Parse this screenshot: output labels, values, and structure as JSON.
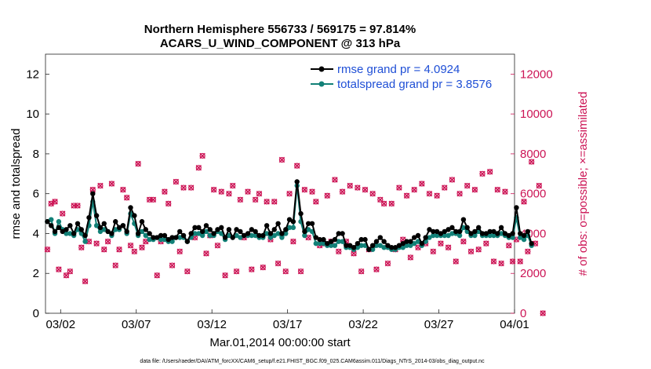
{
  "chart_data": {
    "type": "line",
    "title_line1": "Northern Hemisphere 556733 / 569175 = 97.814%",
    "title_line2": "ACARS_U_WIND_COMPONENT @ 313 hPa",
    "xlabel": "Mar.01,2014 00:00:00 start",
    "ylabel": "rmse and totalspread",
    "ylabel_right": "# of obs: o=possible; ×=assimilated",
    "footer": "data file: /Users/raeder/DAI/ATM_forcXX/CAM6_setup/f.e21.FHIST_BGC.f09_025.CAM6assim.011/Diags_NTrS_2014-03/obs_diag_output.nc",
    "xlim": [
      0,
      31
    ],
    "ylim": [
      0,
      13
    ],
    "ylim_right": [
      0,
      13000
    ],
    "x_ticks": [
      1,
      6,
      11,
      16,
      21,
      26,
      31
    ],
    "x_tick_labels": [
      "03/02",
      "03/07",
      "03/12",
      "03/17",
      "03/22",
      "03/27",
      "04/01"
    ],
    "y_ticks": [
      0,
      2,
      4,
      6,
      8,
      10,
      12
    ],
    "y_tick_labels": [
      "0",
      "2",
      "4",
      "6",
      "8",
      "10",
      "12"
    ],
    "y_right_ticks": [
      0,
      2000,
      4000,
      6000,
      8000,
      10000,
      12000
    ],
    "y_right_tick_labels": [
      "0",
      "2000",
      "4000",
      "6000",
      "8000",
      "10000",
      "12000"
    ],
    "x_step_days": 0.25,
    "series": [
      {
        "name": "rmse",
        "legend": "rmse grand pr = 4.0924",
        "color": "#000000",
        "values": [
          4.6,
          4.4,
          4.1,
          4.3,
          4.1,
          4.2,
          4.4,
          4.0,
          4.5,
          4.2,
          3.9,
          4.8,
          6.0,
          4.9,
          4.3,
          4.5,
          4.1,
          4.0,
          4.6,
          4.3,
          4.4,
          4.1,
          5.3,
          4.9,
          4.0,
          4.6,
          4.2,
          4.0,
          3.8,
          3.8,
          3.9,
          3.9,
          3.7,
          3.8,
          3.8,
          4.1,
          3.9,
          3.6,
          4.0,
          4.3,
          4.3,
          4.1,
          4.4,
          4.2,
          4.0,
          4.2,
          4.3,
          3.8,
          4.2,
          3.8,
          4.2,
          4.1,
          3.9,
          4.0,
          4.2,
          4.1,
          3.9,
          3.9,
          4.4,
          4.0,
          4.2,
          4.5,
          4.0,
          4.2,
          4.7,
          4.6,
          6.6,
          5.0,
          4.1,
          4.5,
          4.5,
          3.8,
          3.7,
          3.7,
          3.5,
          3.6,
          3.7,
          4.0,
          4.0,
          3.4,
          3.4,
          3.3,
          3.5,
          3.7,
          3.7,
          3.2,
          3.4,
          3.6,
          3.8,
          3.6,
          3.4,
          3.3,
          3.3,
          3.4,
          3.5,
          3.6,
          3.6,
          3.8,
          3.9,
          3.5,
          3.8,
          4.2,
          4.1,
          4.1,
          4.0,
          4.1,
          4.2,
          4.3,
          4.1,
          4.1,
          4.7,
          4.3,
          4.0,
          4.1,
          4.3,
          4.0,
          4.0,
          4.1,
          4.1,
          4.0,
          4.3,
          4.0,
          3.9,
          4.0,
          5.3,
          4.0,
          3.9,
          4.1,
          3.5
        ]
      },
      {
        "name": "totalspread",
        "legend": "totalspread grand pr = 3.8576",
        "color": "#128077",
        "values": [
          4.6,
          4.7,
          4.0,
          4.6,
          4.2,
          4.0,
          4.0,
          3.9,
          4.2,
          4.0,
          3.6,
          4.4,
          5.6,
          4.4,
          4.1,
          4.2,
          4.1,
          3.9,
          4.2,
          4.2,
          4.4,
          4.0,
          5.0,
          4.5,
          3.9,
          4.1,
          3.9,
          3.7,
          3.7,
          3.8,
          3.7,
          3.7,
          3.6,
          3.6,
          3.8,
          3.8,
          3.8,
          3.6,
          3.8,
          4.0,
          4.0,
          3.9,
          4.1,
          3.9,
          3.9,
          4.1,
          4.0,
          3.7,
          3.9,
          3.8,
          3.9,
          3.8,
          3.9,
          3.9,
          3.9,
          3.9,
          3.8,
          3.8,
          4.0,
          3.8,
          3.9,
          4.0,
          3.8,
          4.0,
          4.3,
          4.3,
          6.4,
          4.6,
          3.9,
          4.2,
          4.1,
          3.5,
          3.5,
          3.5,
          3.4,
          3.4,
          3.4,
          3.6,
          3.6,
          3.3,
          3.3,
          3.2,
          3.3,
          3.4,
          3.4,
          3.2,
          3.2,
          3.4,
          3.4,
          3.3,
          3.3,
          3.2,
          3.2,
          3.3,
          3.3,
          3.4,
          3.4,
          3.5,
          3.6,
          3.4,
          3.6,
          3.8,
          3.9,
          3.9,
          3.9,
          3.9,
          3.9,
          4.0,
          4.0,
          3.9,
          4.3,
          4.1,
          3.9,
          3.9,
          4.1,
          3.9,
          3.9,
          3.9,
          3.9,
          3.9,
          4.0,
          3.9,
          3.8,
          3.8,
          4.8,
          3.8,
          3.7,
          3.9,
          3.4
        ]
      }
    ],
    "obs_series": {
      "name": "# of obs",
      "color": "#cc1455",
      "values": [
        3200,
        5500,
        5600,
        2200,
        5000,
        1900,
        2100,
        5400,
        5400,
        3300,
        1600,
        3600,
        6200,
        3500,
        6400,
        3200,
        3600,
        6500,
        2400,
        3200,
        6200,
        5800,
        3400,
        3100,
        7500,
        3300,
        3600,
        5700,
        5700,
        1900,
        3600,
        6100,
        5500,
        2400,
        6600,
        3100,
        6300,
        2100,
        6300,
        3800,
        7300,
        7900,
        3000,
        3900,
        6200,
        3400,
        6100,
        1900,
        6000,
        6400,
        2100,
        5700,
        3800,
        6100,
        2200,
        5700,
        6000,
        2300,
        5600,
        3700,
        5600,
        2500,
        7700,
        2100,
        6000,
        3600,
        7400,
        2100,
        6200,
        3800,
        6100,
        5600,
        3400,
        3500,
        5900,
        3600,
        6700,
        3100,
        6100,
        3600,
        6400,
        3000,
        6300,
        2100,
        6200,
        3200,
        6000,
        2200,
        5700,
        5500,
        2500,
        5500,
        3200,
        6300,
        3700,
        5900,
        2800,
        6200,
        3300,
        6500,
        3500,
        6000,
        3100,
        5900,
        3500,
        6300,
        3300,
        6700,
        2600,
        6000,
        3600,
        6400,
        3100,
        6200,
        3200,
        7000,
        3500,
        7100,
        2600,
        6200,
        2500,
        6100,
        3400,
        2600,
        3700,
        2600,
        5600,
        3100,
        7600,
        3500,
        6400,
        0
      ]
    }
  }
}
